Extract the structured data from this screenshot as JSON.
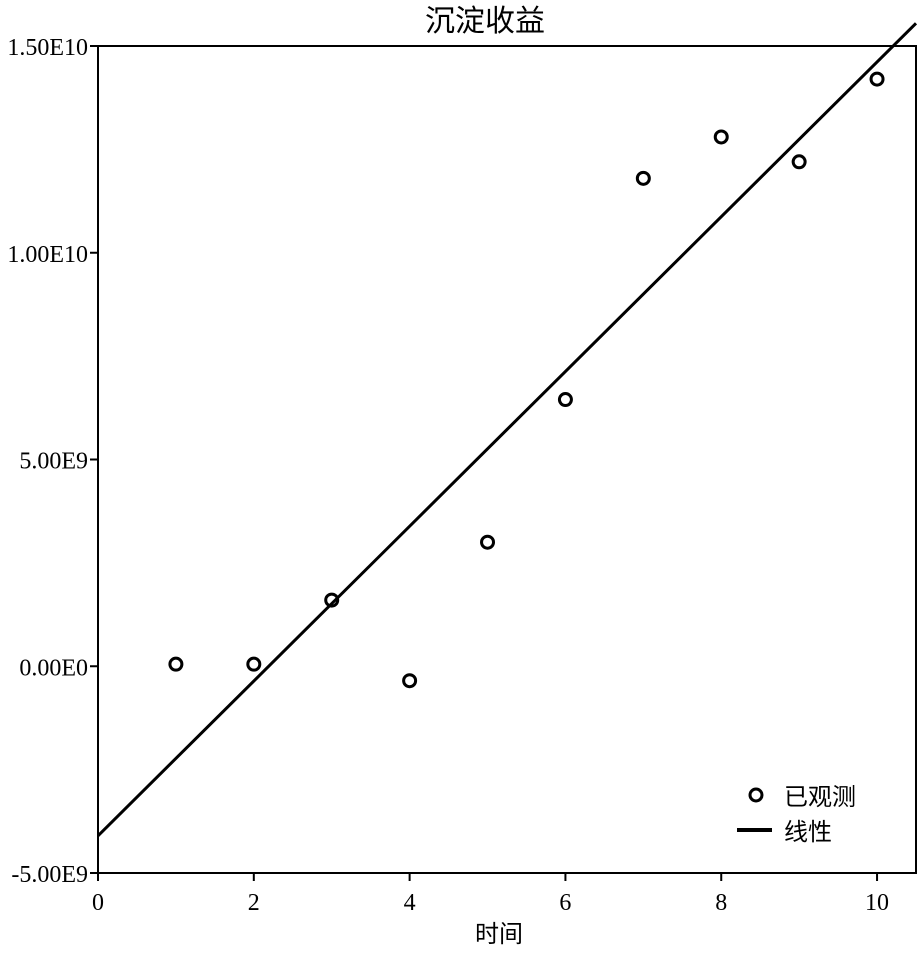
{
  "chart_data": {
    "type": "scatter",
    "title": "沉淀收益",
    "xlabel": "时间",
    "ylabel": "",
    "xlim": [
      0,
      10.5
    ],
    "ylim": [
      -5000000000,
      15000000000
    ],
    "xticks": [
      0,
      2,
      4,
      6,
      8,
      10
    ],
    "xtick_labels": [
      "0",
      "2",
      "4",
      "6",
      "8",
      "10"
    ],
    "yticks": [
      -5000000000,
      0,
      5000000000,
      10000000000,
      15000000000
    ],
    "ytick_labels": [
      "-5.00E9",
      "0.00E0",
      "5.00E9",
      "1.00E10",
      "1.50E10"
    ],
    "grid": false,
    "legend_position": "bottom-right",
    "series": [
      {
        "name": "已观测",
        "kind": "scatter",
        "marker": "open-circle",
        "x": [
          1,
          2,
          3,
          4,
          5,
          6,
          7,
          8,
          9,
          10
        ],
        "y": [
          50000000,
          50000000,
          1600000000,
          -350000000,
          3000000000,
          6450000000,
          11800000000,
          12800000000,
          12200000000,
          14200000000
        ]
      },
      {
        "name": "线性",
        "kind": "line",
        "x": [
          0,
          10.5
        ],
        "y": [
          -4100000000,
          15550000000
        ]
      }
    ],
    "colors": {
      "foreground": "#000000",
      "background": "#ffffff"
    }
  }
}
